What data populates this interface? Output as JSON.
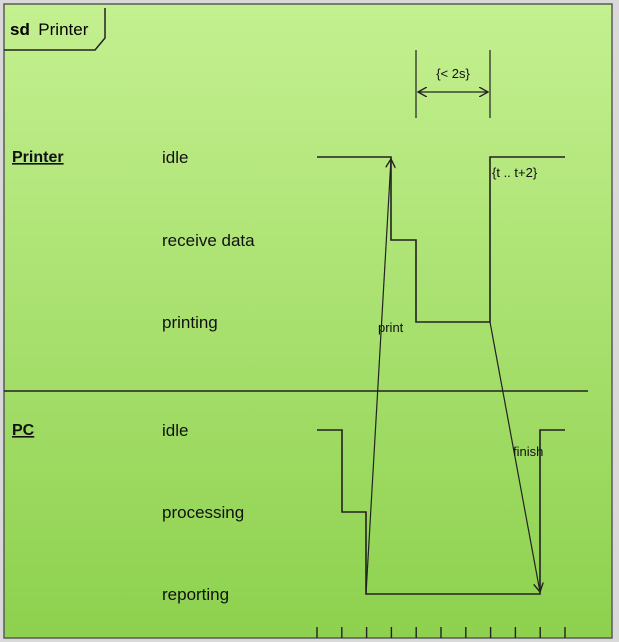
{
  "frame": {
    "kind": "sd",
    "name": "Printer"
  },
  "printer": {
    "lifeline": "Printer",
    "states": [
      "idle",
      "receive data",
      "printing"
    ]
  },
  "pc": {
    "lifeline": "PC",
    "states": [
      "idle",
      "processing",
      "reporting"
    ]
  },
  "constraints": {
    "duration": "{< 2s}",
    "timing": "{t .. t+2}"
  },
  "messages": {
    "print": "print",
    "finish": "finish"
  },
  "colors": {
    "background_top": "#c4f090",
    "background_bottom": "#8dd14e",
    "line": "#222222"
  }
}
